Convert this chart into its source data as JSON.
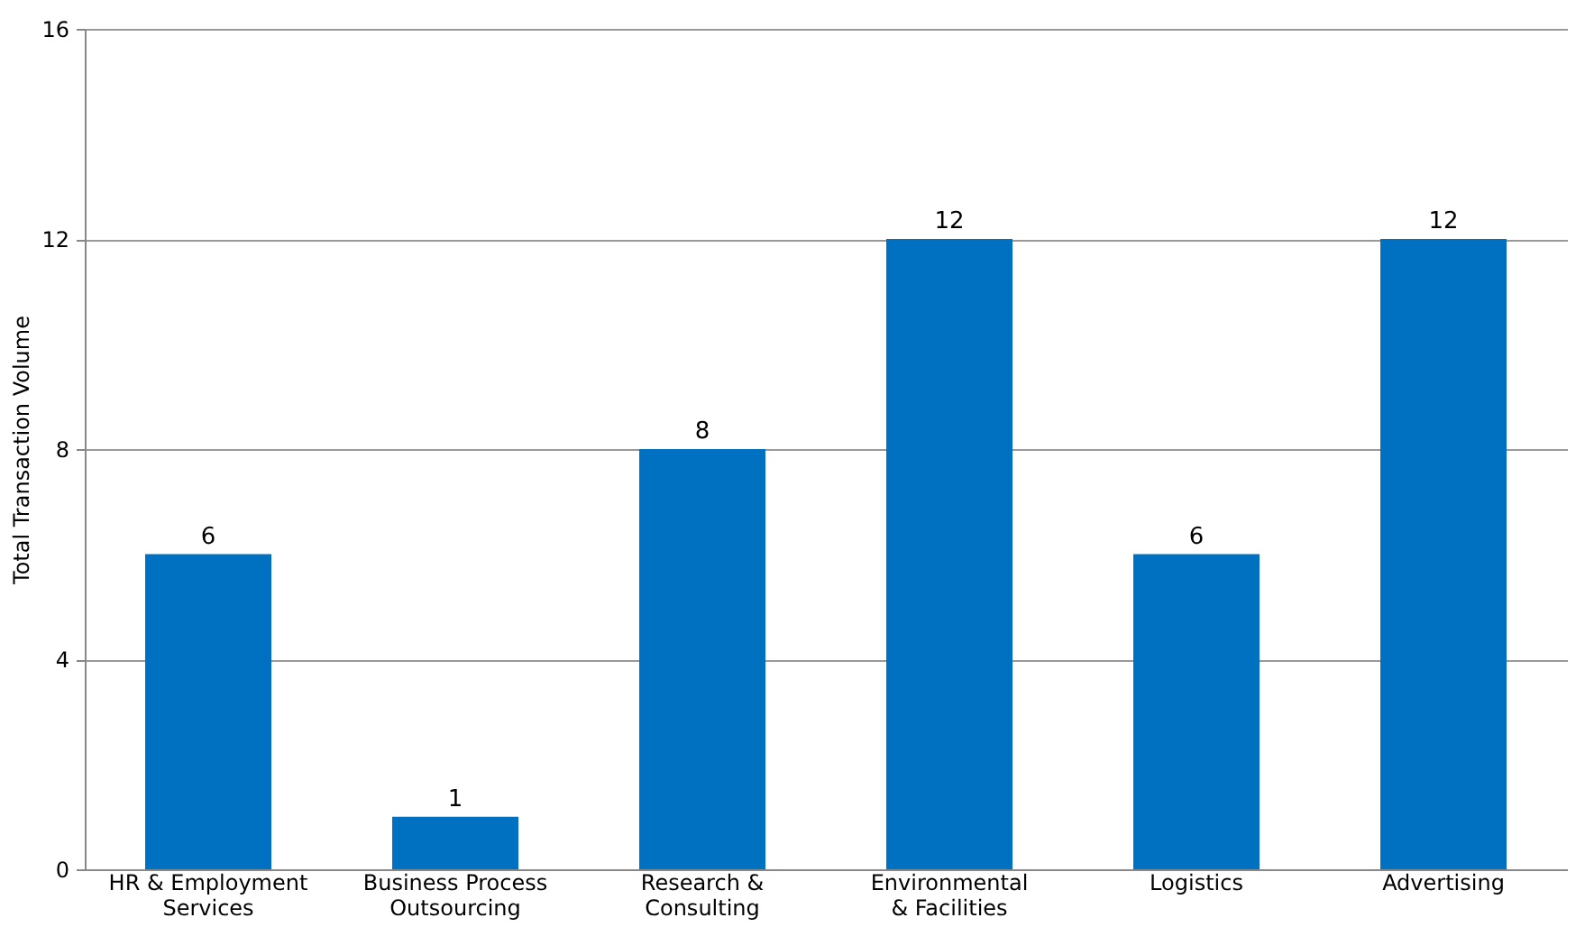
{
  "chart_data": {
    "type": "bar",
    "ylabel": "Total Transaction Volume",
    "categories": [
      "HR & Employment Services",
      "Business Process Outsourcing",
      "Research & Consulting",
      "Environmental & Facilities",
      "Logistics",
      "Advertising"
    ],
    "values": [
      6,
      1,
      8,
      12,
      6,
      12
    ],
    "color": "#0070c0",
    "ylim": [
      0,
      16
    ],
    "yticks": [
      0,
      4,
      8,
      12,
      16
    ],
    "grid": "y",
    "data_labels": true
  }
}
